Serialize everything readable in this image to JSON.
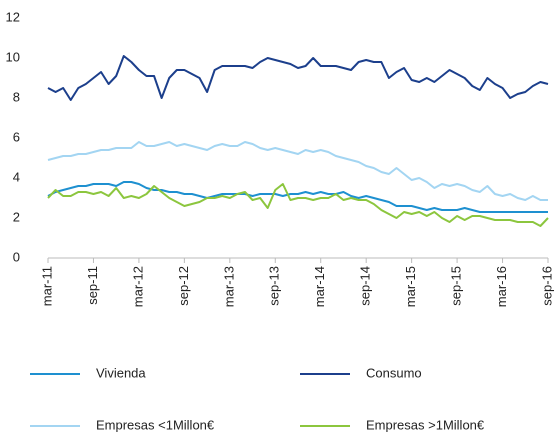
{
  "chart_data": {
    "type": "line",
    "categories": [
      "mar-11",
      null,
      null,
      null,
      null,
      null,
      "sep-11",
      null,
      null,
      null,
      null,
      null,
      "mar-12",
      null,
      null,
      null,
      null,
      null,
      "sep-12",
      null,
      null,
      null,
      null,
      null,
      "mar-13",
      null,
      null,
      null,
      null,
      null,
      "sep-13",
      null,
      null,
      null,
      null,
      null,
      "mar-14",
      null,
      null,
      null,
      null,
      null,
      "sep-14",
      null,
      null,
      null,
      null,
      null,
      "mar-15",
      null,
      null,
      null,
      null,
      null,
      "sep-15",
      null,
      null,
      null,
      null,
      null,
      "mar-16",
      null,
      null,
      null,
      null,
      null,
      "sep-16"
    ],
    "series": [
      {
        "name": "Vivienda",
        "color": "#1e90d0",
        "values": [
          3.1,
          3.3,
          3.4,
          3.5,
          3.6,
          3.6,
          3.7,
          3.7,
          3.7,
          3.6,
          3.8,
          3.8,
          3.7,
          3.5,
          3.4,
          3.4,
          3.3,
          3.3,
          3.2,
          3.2,
          3.1,
          3.0,
          3.1,
          3.2,
          3.2,
          3.2,
          3.2,
          3.1,
          3.2,
          3.2,
          3.2,
          3.1,
          3.2,
          3.2,
          3.3,
          3.2,
          3.3,
          3.2,
          3.2,
          3.3,
          3.1,
          3.0,
          3.1,
          3.0,
          2.9,
          2.8,
          2.6,
          2.6,
          2.6,
          2.5,
          2.4,
          2.5,
          2.4,
          2.4,
          2.4,
          2.5,
          2.4,
          2.3,
          2.3,
          2.3,
          2.3,
          2.3,
          2.3,
          2.3,
          2.3,
          2.3,
          2.3
        ]
      },
      {
        "name": "Consumo",
        "color": "#1c3f8c",
        "values": [
          8.5,
          8.3,
          8.5,
          7.9,
          8.5,
          8.7,
          9.0,
          9.3,
          8.7,
          9.1,
          10.1,
          9.8,
          9.4,
          9.1,
          9.1,
          8.0,
          9.0,
          9.4,
          9.4,
          9.2,
          9.0,
          8.3,
          9.4,
          9.6,
          9.6,
          9.6,
          9.6,
          9.5,
          9.8,
          10.0,
          9.9,
          9.8,
          9.7,
          9.5,
          9.6,
          10.0,
          9.6,
          9.6,
          9.6,
          9.5,
          9.4,
          9.8,
          9.9,
          9.8,
          9.8,
          9.0,
          9.3,
          9.5,
          8.9,
          8.8,
          9.0,
          8.8,
          9.1,
          9.4,
          9.2,
          9.0,
          8.6,
          8.4,
          9.0,
          8.7,
          8.5,
          8.0,
          8.2,
          8.3,
          8.6,
          8.8,
          8.7
        ]
      },
      {
        "name": "Empresas <1Millon€",
        "color": "#a3d5f2",
        "values": [
          4.9,
          5.0,
          5.1,
          5.1,
          5.2,
          5.2,
          5.3,
          5.4,
          5.4,
          5.5,
          5.5,
          5.5,
          5.8,
          5.6,
          5.6,
          5.7,
          5.8,
          5.6,
          5.7,
          5.6,
          5.5,
          5.4,
          5.6,
          5.7,
          5.6,
          5.6,
          5.8,
          5.7,
          5.5,
          5.4,
          5.5,
          5.4,
          5.3,
          5.2,
          5.4,
          5.3,
          5.4,
          5.3,
          5.1,
          5.0,
          4.9,
          4.8,
          4.6,
          4.5,
          4.3,
          4.2,
          4.5,
          4.2,
          3.9,
          4.0,
          3.8,
          3.5,
          3.7,
          3.6,
          3.7,
          3.6,
          3.4,
          3.3,
          3.6,
          3.2,
          3.1,
          3.2,
          3.0,
          2.9,
          3.1,
          2.9,
          2.9
        ]
      },
      {
        "name": "Empresas >1Millon€",
        "color": "#8cc63e",
        "values": [
          3.0,
          3.4,
          3.1,
          3.1,
          3.3,
          3.3,
          3.2,
          3.3,
          3.1,
          3.5,
          3.0,
          3.1,
          3.0,
          3.2,
          3.6,
          3.3,
          3.0,
          2.8,
          2.6,
          2.7,
          2.8,
          3.0,
          3.0,
          3.1,
          3.0,
          3.2,
          3.3,
          2.9,
          3.0,
          2.5,
          3.4,
          3.7,
          2.9,
          3.0,
          3.0,
          2.9,
          3.0,
          3.0,
          3.2,
          2.9,
          3.0,
          2.9,
          2.9,
          2.7,
          2.4,
          2.2,
          2.0,
          2.3,
          2.2,
          2.3,
          2.1,
          2.3,
          2.0,
          1.8,
          2.1,
          1.9,
          2.1,
          2.1,
          2.0,
          1.9,
          1.9,
          1.9,
          1.8,
          1.8,
          1.8,
          1.6,
          2.0
        ]
      }
    ],
    "ylim": [
      0,
      12
    ],
    "yticks": [
      0,
      2,
      4,
      6,
      8,
      10,
      12
    ]
  }
}
